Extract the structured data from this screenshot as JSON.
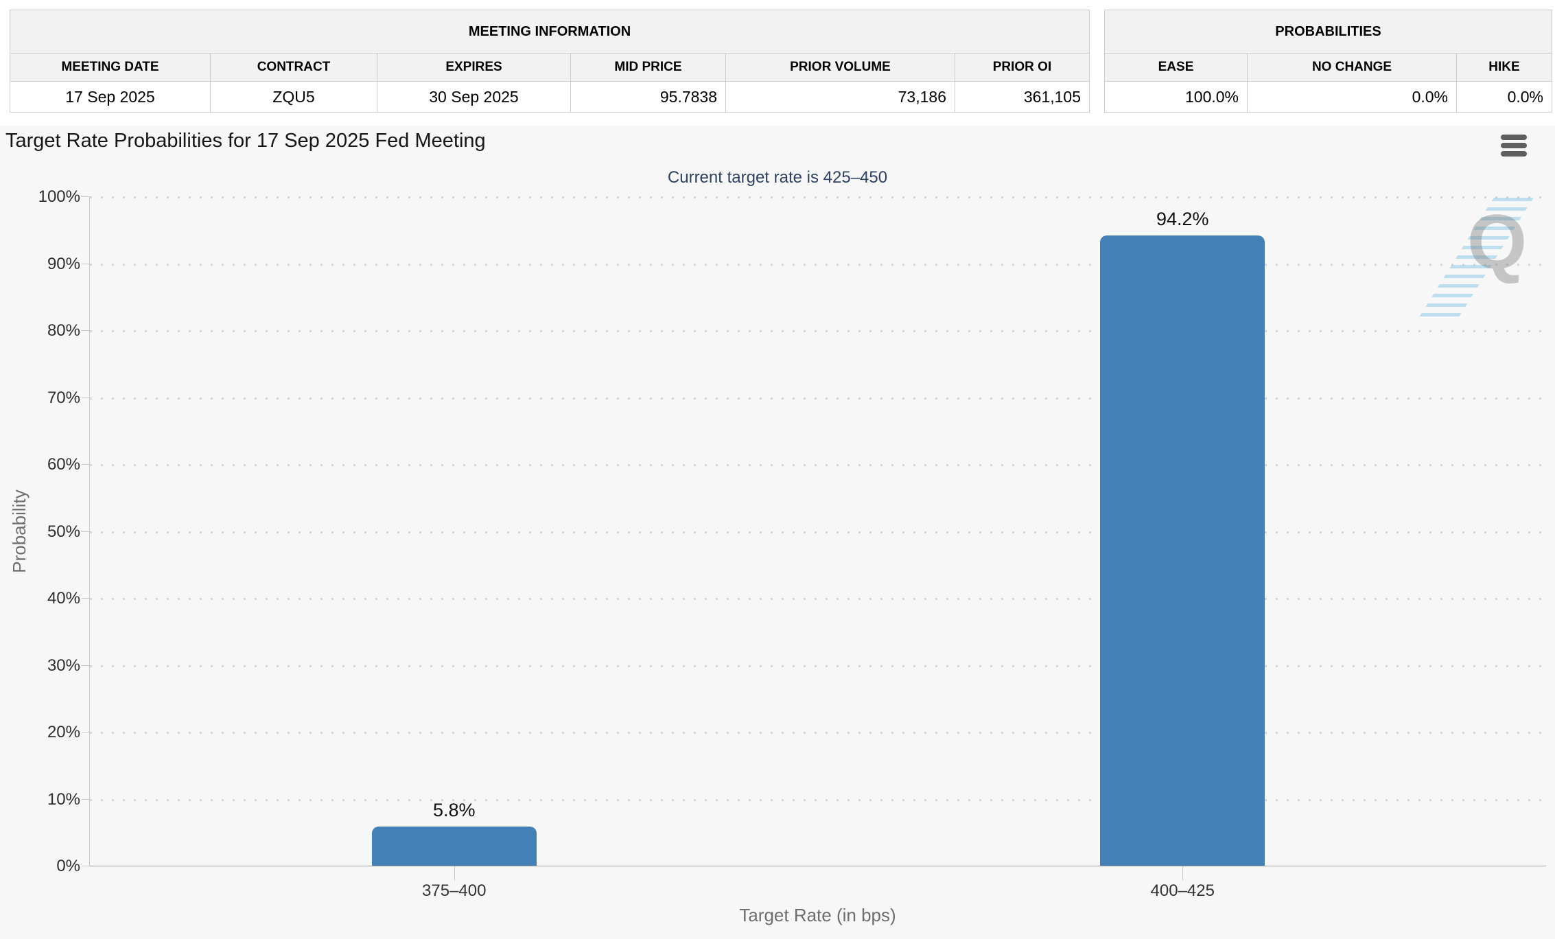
{
  "meeting_information": {
    "title": "MEETING INFORMATION",
    "columns": [
      "MEETING DATE",
      "CONTRACT",
      "EXPIRES",
      "MID PRICE",
      "PRIOR VOLUME",
      "PRIOR OI"
    ],
    "values": [
      "17 Sep 2025",
      "ZQU5",
      "30 Sep 2025",
      "95.7838",
      "73,186",
      "361,105"
    ]
  },
  "probabilities_summary": {
    "title": "PROBABILITIES",
    "columns": [
      "EASE",
      "NO CHANGE",
      "HIKE"
    ],
    "values": [
      "100.0%",
      "0.0%",
      "0.0%"
    ]
  },
  "chart": {
    "title": "Target Rate Probabilities for 17 Sep 2025 Fed Meeting",
    "subtitle": "Current target rate is 425–450",
    "menu_icon": "hamburger-menu-icon",
    "watermark_letter": "Q"
  },
  "chart_data": {
    "type": "bar",
    "title": "Target Rate Probabilities for 17 Sep 2025 Fed Meeting",
    "subtitle": "Current target rate is 425–450",
    "categories": [
      "375–400",
      "400–425"
    ],
    "values": [
      5.8,
      94.2
    ],
    "data_labels": [
      "5.8%",
      "94.2%"
    ],
    "xlabel": "Target Rate (in bps)",
    "ylabel": "Probability",
    "ylim": [
      0,
      100
    ],
    "ytick_labels": [
      "0%",
      "10%",
      "20%",
      "30%",
      "40%",
      "50%",
      "60%",
      "70%",
      "80%",
      "90%",
      "100%"
    ],
    "grid": "dotted-horizontal",
    "legend": "none",
    "bar_color": "#4280b5",
    "background_color": "#f7f7f7"
  }
}
